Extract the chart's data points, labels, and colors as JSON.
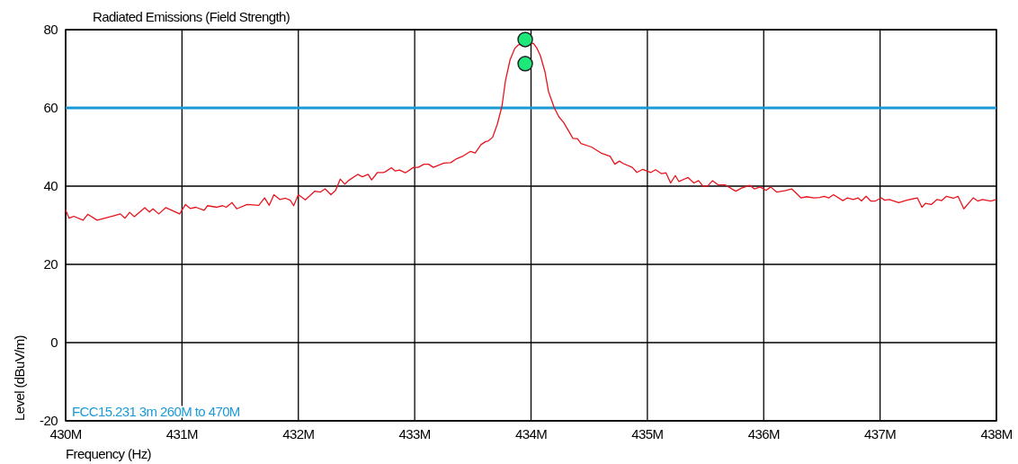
{
  "chart_data": {
    "type": "line",
    "title": "Radiated Emissions (Field Strength)",
    "xlabel": "Frequency (Hz)",
    "ylabel": "Level (dBuV/m)",
    "xlim": [
      430,
      438
    ],
    "ylim": [
      -20,
      80
    ],
    "xticks": [
      {
        "value": 430,
        "label": "430M"
      },
      {
        "value": 431,
        "label": "431M"
      },
      {
        "value": 432,
        "label": "432M"
      },
      {
        "value": 433,
        "label": "433M"
      },
      {
        "value": 434,
        "label": "434M"
      },
      {
        "value": 435,
        "label": "435M"
      },
      {
        "value": 436,
        "label": "436M"
      },
      {
        "value": 437,
        "label": "437M"
      },
      {
        "value": 438,
        "label": "438M"
      }
    ],
    "yticks": [
      -20,
      0,
      20,
      40,
      60,
      80
    ],
    "grid": true,
    "ref_lines": [
      {
        "axis": "y",
        "value": 60,
        "label": "FCC15.231 3m 260M to 470M",
        "color": "#1a9ad6"
      }
    ],
    "series": [
      {
        "color": "#e8141c",
        "marker": "none",
        "x": [
          430.0,
          430.03,
          430.07,
          430.15,
          430.19,
          430.27,
          430.41,
          430.47,
          430.51,
          430.55,
          430.59,
          430.68,
          430.72,
          430.75,
          430.8,
          430.86,
          430.98,
          431.03,
          431.07,
          431.12,
          431.19,
          431.22,
          431.3,
          431.35,
          431.38,
          431.43,
          431.47,
          431.56,
          431.66,
          431.71,
          431.75,
          431.79,
          431.84,
          431.89,
          431.93,
          431.96,
          432.0,
          432.06,
          432.14,
          432.19,
          432.23,
          432.28,
          432.32,
          432.36,
          432.4,
          432.43,
          432.51,
          432.55,
          432.6,
          432.63,
          432.68,
          432.73,
          432.75,
          432.8,
          432.83,
          432.87,
          432.92,
          432.99,
          433.03,
          433.08,
          433.12,
          433.16,
          433.25,
          433.31,
          433.36,
          433.41,
          433.48,
          433.52,
          433.57,
          433.61,
          433.63,
          433.67,
          433.71,
          433.75,
          433.78,
          433.82,
          433.86,
          433.89,
          434.02,
          434.05,
          434.08,
          434.12,
          434.15,
          434.2,
          434.24,
          434.28,
          434.36,
          434.4,
          434.43,
          434.52,
          434.6,
          434.68,
          434.72,
          434.76,
          434.79,
          434.87,
          434.91,
          434.96,
          435.03,
          435.07,
          435.12,
          435.16,
          435.2,
          435.24,
          435.27,
          435.35,
          435.4,
          435.44,
          435.48,
          435.52,
          435.56,
          435.61,
          435.67,
          435.76,
          435.81,
          435.88,
          435.92,
          435.97,
          436.02,
          436.06,
          436.11,
          436.18,
          436.24,
          436.32,
          436.37,
          436.43,
          436.48,
          436.52,
          436.56,
          436.6,
          436.68,
          436.72,
          436.77,
          436.81,
          436.84,
          436.88,
          436.92,
          436.96,
          437.01,
          437.04,
          437.08,
          437.16,
          437.23,
          437.32,
          437.36,
          437.39,
          437.44,
          437.49,
          437.53,
          437.57,
          437.63,
          437.67,
          437.72,
          437.8,
          437.84,
          437.88,
          437.95,
          438.0
        ],
        "values": [
          33.9,
          31.8,
          32.3,
          31.3,
          32.8,
          31.3,
          32.4,
          32.9,
          31.8,
          33.3,
          32.2,
          34.5,
          33.4,
          34.2,
          32.9,
          34.5,
          32.9,
          35.3,
          34.3,
          34.6,
          33.8,
          35.0,
          34.6,
          35.0,
          34.6,
          35.8,
          34.2,
          35.3,
          35.1,
          37.0,
          35.1,
          37.8,
          36.6,
          36.9,
          36.4,
          35.0,
          37.8,
          36.5,
          38.7,
          38.5,
          39.3,
          37.8,
          38.9,
          41.8,
          40.5,
          41.4,
          43.0,
          42.4,
          43.0,
          41.6,
          43.5,
          43.5,
          43.7,
          44.7,
          43.9,
          44.1,
          43.4,
          44.8,
          44.8,
          45.6,
          45.6,
          44.8,
          45.9,
          46.0,
          47.0,
          47.6,
          48.9,
          48.5,
          50.6,
          51.4,
          51.5,
          52.5,
          55.8,
          60.4,
          66.9,
          72.3,
          75.2,
          76.1,
          76.5,
          75.3,
          73.4,
          69.2,
          64.2,
          60.0,
          57.7,
          56.3,
          52.2,
          52.1,
          50.9,
          50.0,
          48.5,
          47.6,
          45.6,
          46.4,
          45.8,
          44.8,
          43.5,
          44.3,
          43.5,
          44.2,
          43.2,
          43.4,
          40.8,
          42.7,
          41.2,
          42.2,
          40.8,
          41.4,
          39.9,
          40.1,
          41.4,
          40.3,
          40.3,
          38.7,
          39.5,
          40.2,
          39.3,
          39.8,
          38.9,
          39.8,
          38.5,
          38.8,
          39.3,
          37.0,
          37.3,
          37.0,
          37.1,
          37.4,
          37.0,
          37.8,
          36.3,
          37.0,
          36.6,
          37.0,
          36.2,
          37.4,
          36.2,
          36.2,
          37.0,
          36.4,
          36.6,
          35.8,
          36.4,
          37.0,
          34.6,
          35.6,
          35.3,
          36.6,
          36.3,
          37.4,
          36.9,
          37.4,
          34.2,
          37.0,
          36.2,
          36.6,
          36.2,
          36.6
        ]
      },
      {
        "type": "scatter",
        "color": "#1de87a",
        "marker": "circle",
        "x": [
          433.95,
          433.95
        ],
        "values": [
          77.5,
          71.3
        ]
      }
    ]
  }
}
